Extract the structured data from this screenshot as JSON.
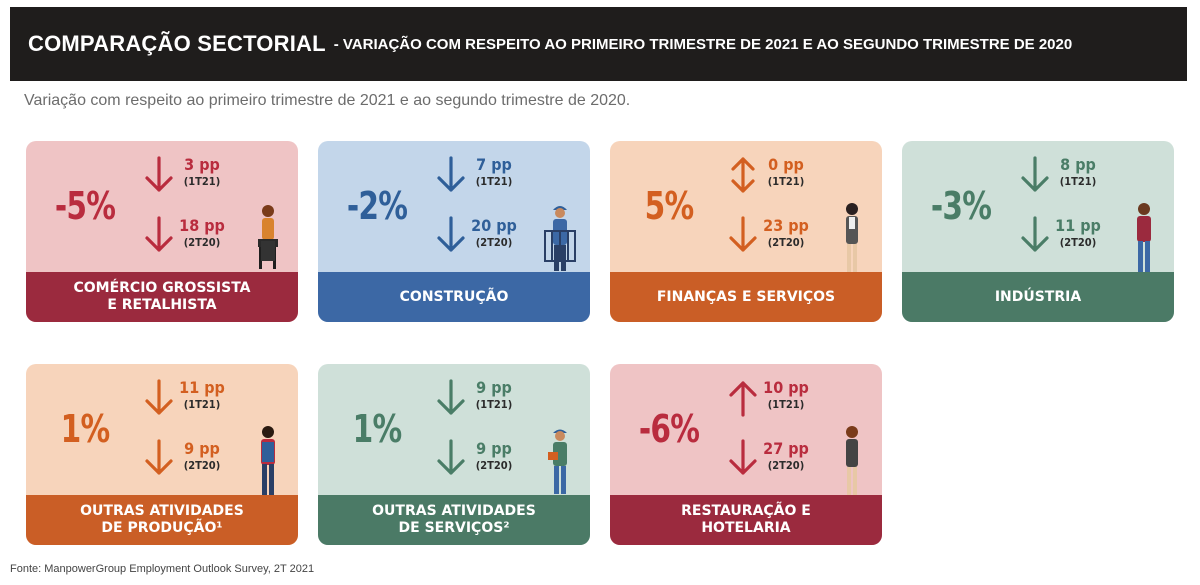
{
  "header": {
    "title": "COMPARAÇÃO SECTORIAL",
    "subtitle": "- VARIAÇÃO COM RESPEITO AO PRIMEIRO TRIMESTRE DE 2021 E AO SEGUNDO TRIMESTRE DE 2020"
  },
  "intro": "Variação com respeito ao primeiro trimestre de 2021 e ao segundo trimestre de 2020.",
  "sectors": [
    {
      "name": "COMÉRCIO GROSSISTA\nE RETALHISTA",
      "pct": "-5%",
      "v1": "3 pp",
      "p1": "(1T21)",
      "v2": "18 pp",
      "p2": "(2T20)",
      "dir1": "down",
      "dir2": "down",
      "bg": "#efc4c5",
      "accent": "#b92c3e",
      "band": "#9b2a3e"
    },
    {
      "name": "CONSTRUÇÃO",
      "pct": "-2%",
      "v1": "7 pp",
      "p1": "(1T21)",
      "v2": "20 pp",
      "p2": "(2T20)",
      "dir1": "down",
      "dir2": "down",
      "bg": "#c3d6ea",
      "accent": "#2f5f99",
      "band": "#3c68a5"
    },
    {
      "name": "FINANÇAS E SERVIÇOS",
      "pct": "5%",
      "v1": "0 pp",
      "p1": "(1T21)",
      "v2": "23 pp",
      "p2": "(2T20)",
      "dir1": "both",
      "dir2": "down",
      "bg": "#f7d4bb",
      "accent": "#d35f20",
      "band": "#ca5e26"
    },
    {
      "name": "INDÚSTRIA",
      "pct": "-3%",
      "v1": "8 pp",
      "p1": "(1T21)",
      "v2": "11 pp",
      "p2": "(2T20)",
      "dir1": "down",
      "dir2": "down",
      "bg": "#cfe0d9",
      "accent": "#4a7d67",
      "band": "#4b7a66"
    },
    {
      "name": "OUTRAS ATIVIDADES\nDE PRODUÇÃO¹",
      "pct": "1%",
      "v1": "11 pp",
      "p1": "(1T21)",
      "v2": "9 pp",
      "p2": "(2T20)",
      "dir1": "down",
      "dir2": "down",
      "bg": "#f7d4bb",
      "accent": "#d35f20",
      "band": "#ca5e26"
    },
    {
      "name": "OUTRAS ATIVIDADES\nDE SERVIÇOS²",
      "pct": "1%",
      "v1": "9 pp",
      "p1": "(1T21)",
      "v2": "9 pp",
      "p2": "(2T20)",
      "dir1": "down",
      "dir2": "down",
      "bg": "#cfe0d9",
      "accent": "#4a7d67",
      "band": "#4b7a66"
    },
    {
      "name": "RESTAURAÇÃO E\nHOTELARIA",
      "pct": "-6%",
      "v1": "10 pp",
      "p1": "(1T21)",
      "v2": "27 pp",
      "p2": "(2T20)",
      "dir1": "up",
      "dir2": "down",
      "bg": "#efc4c5",
      "accent": "#b92c3e",
      "band": "#9b2a3e"
    }
  ],
  "source": "Fonte: ManpowerGroup Employment Outlook Survey, 2T 2021"
}
